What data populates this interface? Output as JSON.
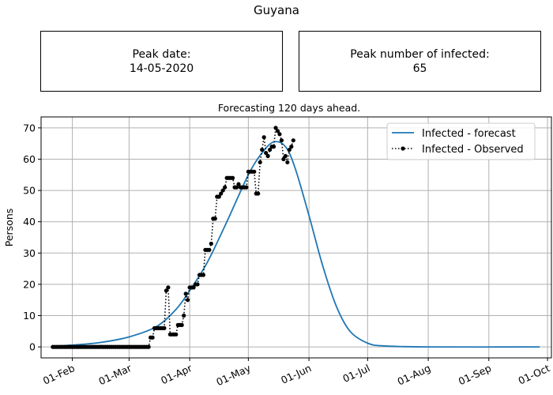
{
  "figure": {
    "title": "Guyana"
  },
  "info_boxes": {
    "peak_date_label": "Peak date:",
    "peak_date_value": "14-05-2020",
    "peak_infected_label": "Peak number of infected:",
    "peak_infected_value": "65"
  },
  "chart_data": {
    "type": "line",
    "title": "Forecasting 120 days ahead.",
    "xlabel": "",
    "ylabel": "Persons",
    "x_type": "date",
    "xlim": [
      "2020-01-16",
      "2020-10-03"
    ],
    "ylim": [
      -3.5,
      73.5
    ],
    "x_ticks": [
      "2020-02-01",
      "2020-03-01",
      "2020-04-01",
      "2020-05-01",
      "2020-06-01",
      "2020-07-01",
      "2020-08-01",
      "2020-09-01",
      "2020-10-01"
    ],
    "x_tick_labels": [
      "01-Feb",
      "01-Mar",
      "01-Apr",
      "01-May",
      "01-Jun",
      "01-Jul",
      "01-Aug",
      "01-Sep",
      "01-Oct"
    ],
    "y_ticks": [
      0,
      10,
      20,
      30,
      40,
      50,
      60,
      70
    ],
    "grid": true,
    "legend_position": "top-right",
    "series": [
      {
        "name": "Infected - forecast",
        "color": "#1f77b4",
        "style": "solid",
        "points": [
          [
            "2020-01-22",
            0.2
          ],
          [
            "2020-02-01",
            0.6
          ],
          [
            "2020-02-15",
            1.4
          ],
          [
            "2020-03-01",
            3.2
          ],
          [
            "2020-03-15",
            6.5
          ],
          [
            "2020-03-25",
            12.0
          ],
          [
            "2020-04-01",
            18.0
          ],
          [
            "2020-04-10",
            27.0
          ],
          [
            "2020-04-20",
            40.0
          ],
          [
            "2020-05-01",
            55.0
          ],
          [
            "2020-05-08",
            62.0
          ],
          [
            "2020-05-14",
            65.5
          ],
          [
            "2020-05-20",
            64.0
          ],
          [
            "2020-05-25",
            57.0
          ],
          [
            "2020-06-01",
            42.0
          ],
          [
            "2020-06-08",
            26.0
          ],
          [
            "2020-06-15",
            13.0
          ],
          [
            "2020-06-22",
            5.0
          ],
          [
            "2020-07-01",
            1.2
          ],
          [
            "2020-07-10",
            0.3
          ],
          [
            "2020-08-01",
            0.0
          ],
          [
            "2020-09-27",
            0.0
          ]
        ]
      },
      {
        "name": "Infected - Observed",
        "color": "#000000",
        "style": "dotted-markers",
        "points": [
          [
            "2020-01-22",
            0
          ],
          [
            "2020-03-10",
            0
          ],
          [
            "2020-03-11",
            0
          ],
          [
            "2020-03-12",
            3
          ],
          [
            "2020-03-13",
            3
          ],
          [
            "2020-03-14",
            6
          ],
          [
            "2020-03-19",
            6
          ],
          [
            "2020-03-20",
            18
          ],
          [
            "2020-03-21",
            19
          ],
          [
            "2020-03-22",
            4
          ],
          [
            "2020-03-25",
            4
          ],
          [
            "2020-03-26",
            7
          ],
          [
            "2020-03-28",
            7
          ],
          [
            "2020-03-29",
            10
          ],
          [
            "2020-03-30",
            17
          ],
          [
            "2020-03-31",
            15
          ],
          [
            "2020-04-01",
            19
          ],
          [
            "2020-04-03",
            19
          ],
          [
            "2020-04-04",
            20
          ],
          [
            "2020-04-05",
            20
          ],
          [
            "2020-04-06",
            23
          ],
          [
            "2020-04-08",
            23
          ],
          [
            "2020-04-09",
            31
          ],
          [
            "2020-04-11",
            31
          ],
          [
            "2020-04-12",
            33
          ],
          [
            "2020-04-13",
            41
          ],
          [
            "2020-04-14",
            41
          ],
          [
            "2020-04-15",
            48
          ],
          [
            "2020-04-16",
            48
          ],
          [
            "2020-04-17",
            49
          ],
          [
            "2020-04-18",
            50
          ],
          [
            "2020-04-19",
            51
          ],
          [
            "2020-04-20",
            54
          ],
          [
            "2020-04-23",
            54
          ],
          [
            "2020-04-24",
            51
          ],
          [
            "2020-04-26",
            52
          ],
          [
            "2020-04-27",
            51
          ],
          [
            "2020-04-30",
            51
          ],
          [
            "2020-05-01",
            56
          ],
          [
            "2020-05-04",
            56
          ],
          [
            "2020-05-05",
            49
          ],
          [
            "2020-05-06",
            49
          ],
          [
            "2020-05-07",
            59
          ],
          [
            "2020-05-08",
            63
          ],
          [
            "2020-05-09",
            67
          ],
          [
            "2020-05-10",
            62
          ],
          [
            "2020-05-11",
            61
          ],
          [
            "2020-05-12",
            63
          ],
          [
            "2020-05-13",
            64
          ],
          [
            "2020-05-14",
            64
          ],
          [
            "2020-05-15",
            70
          ],
          [
            "2020-05-16",
            69
          ],
          [
            "2020-05-17",
            68
          ],
          [
            "2020-05-18",
            66
          ],
          [
            "2020-05-19",
            60
          ],
          [
            "2020-05-20",
            61
          ],
          [
            "2020-05-21",
            59
          ],
          [
            "2020-05-22",
            63
          ],
          [
            "2020-05-23",
            64
          ],
          [
            "2020-05-24",
            66
          ]
        ]
      }
    ]
  }
}
